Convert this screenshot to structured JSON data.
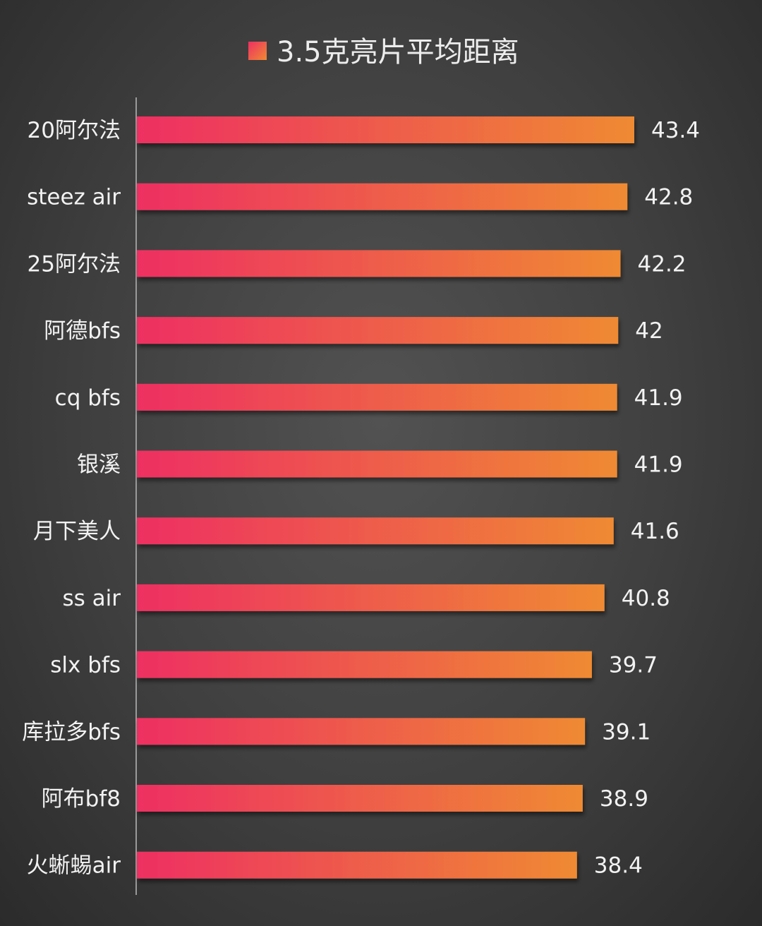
{
  "chart_data": {
    "type": "bar",
    "orientation": "horizontal",
    "title": "",
    "legend": {
      "position": "top-center",
      "entries": [
        "3.5克亮片平均距离"
      ]
    },
    "series": [
      {
        "name": "3.5克亮片平均距离",
        "color_start": "#ee2f62",
        "color_end": "#ef8a33",
        "values": [
          43.4,
          42.8,
          42.2,
          42,
          41.9,
          41.9,
          41.6,
          40.8,
          39.7,
          39.1,
          38.9,
          38.4
        ]
      }
    ],
    "categories": [
      "20阿尔法",
      "steez air",
      "25阿尔法",
      "阿德bfs",
      "cq bfs",
      "银溪",
      "月下美人",
      "ss air",
      "slx bfs",
      "库拉多bfs",
      "阿布bf8",
      "火蜥蜴air"
    ],
    "data_labels": [
      "43.4",
      "42.8",
      "42.2",
      "42",
      "41.9",
      "41.9",
      "41.6",
      "40.8",
      "39.7",
      "39.1",
      "38.9",
      "38.4"
    ],
    "xlabel": "",
    "ylabel": "",
    "grid": false
  }
}
